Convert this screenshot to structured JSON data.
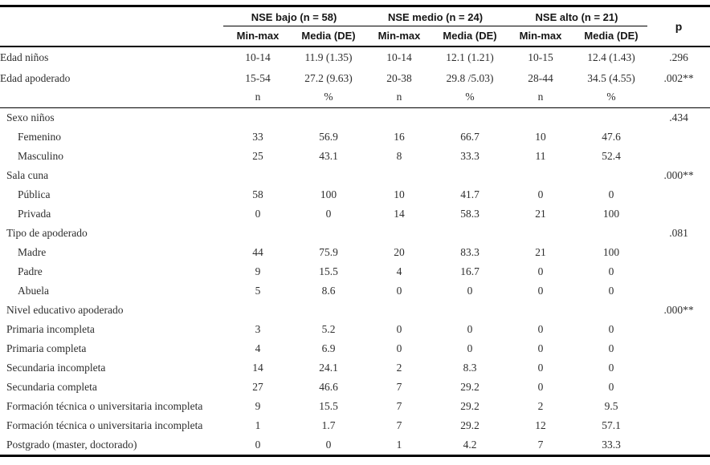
{
  "table": {
    "header": {
      "groups": [
        "NSE bajo (n = 58)",
        "NSE medio (n = 24)",
        "NSE alto (n = 21)"
      ],
      "sub_columns": [
        "Min-max",
        "Media (DE)",
        "Min-max",
        "Media (DE)",
        "Min-max",
        "Media (DE)"
      ],
      "p_label": "p"
    },
    "rows": [
      {
        "type": "stat",
        "label": "Edad niños",
        "indent": false,
        "cells": [
          "10-14",
          "11.9 (1.35)",
          "10-14",
          "12.1 (1.21)",
          "10-15",
          "12.4 (1.43)"
        ],
        "p": ".296"
      },
      {
        "type": "stat",
        "label": "Edad apoderado",
        "indent": false,
        "cells": [
          "15-54",
          "27.2 (9.63)",
          "20-38",
          "29.8 /5.03)",
          "28-44",
          "34.5 (4.55)"
        ],
        "p": ".002**"
      },
      {
        "type": "subheader",
        "label": "",
        "indent": false,
        "cells": [
          "n",
          "%",
          "n",
          "%",
          "n",
          "%"
        ],
        "p": ""
      },
      {
        "type": "section",
        "label": "Sexo niños",
        "indent": false,
        "cells": [
          "",
          "",
          "",
          "",
          "",
          ""
        ],
        "p": ".434"
      },
      {
        "type": "data",
        "label": "Femenino",
        "indent": true,
        "cells": [
          "33",
          "56.9",
          "16",
          "66.7",
          "10",
          "47.6"
        ],
        "p": ""
      },
      {
        "type": "data",
        "label": "Masculino",
        "indent": true,
        "cells": [
          "25",
          "43.1",
          "8",
          "33.3",
          "11",
          "52.4"
        ],
        "p": ""
      },
      {
        "type": "section",
        "label": "Sala cuna",
        "indent": false,
        "cells": [
          "",
          "",
          "",
          "",
          "",
          ""
        ],
        "p": ".000**"
      },
      {
        "type": "data",
        "label": "Pública",
        "indent": true,
        "cells": [
          "58",
          "100",
          "10",
          "41.7",
          "0",
          "0"
        ],
        "p": ""
      },
      {
        "type": "data",
        "label": "Privada",
        "indent": true,
        "cells": [
          "0",
          "0",
          "14",
          "58.3",
          "21",
          "100"
        ],
        "p": ""
      },
      {
        "type": "section",
        "label": "Tipo de apoderado",
        "indent": false,
        "cells": [
          "",
          "",
          "",
          "",
          "",
          ""
        ],
        "p": ".081"
      },
      {
        "type": "data",
        "label": "Madre",
        "indent": true,
        "cells": [
          "44",
          "75.9",
          "20",
          "83.3",
          "21",
          "100"
        ],
        "p": ""
      },
      {
        "type": "data",
        "label": "Padre",
        "indent": true,
        "cells": [
          "9",
          "15.5",
          "4",
          "16.7",
          "0",
          "0"
        ],
        "p": ""
      },
      {
        "type": "data",
        "label": "Abuela",
        "indent": true,
        "cells": [
          "5",
          "8.6",
          "0",
          "0",
          "0",
          "0"
        ],
        "p": ""
      },
      {
        "type": "section",
        "label": "Nivel educativo apoderado",
        "indent": false,
        "cells": [
          "",
          "",
          "",
          "",
          "",
          ""
        ],
        "p": ".000**"
      },
      {
        "type": "data",
        "label": "Primaria incompleta",
        "indent": false,
        "cells": [
          "3",
          "5.2",
          "0",
          "0",
          "0",
          "0"
        ],
        "p": ""
      },
      {
        "type": "data",
        "label": "Primaria completa",
        "indent": false,
        "cells": [
          "4",
          "6.9",
          "0",
          "0",
          "0",
          "0"
        ],
        "p": ""
      },
      {
        "type": "data",
        "label": "Secundaria incompleta",
        "indent": false,
        "cells": [
          "14",
          "24.1",
          "2",
          "8.3",
          "0",
          "0"
        ],
        "p": ""
      },
      {
        "type": "data",
        "label": "Secundaria completa",
        "indent": false,
        "cells": [
          "27",
          "46.6",
          "7",
          "29.2",
          "0",
          "0"
        ],
        "p": ""
      },
      {
        "type": "data",
        "label": "Formación técnica o universitaria incompleta",
        "indent": false,
        "cells": [
          "9",
          "15.5",
          "7",
          "29.2",
          "2",
          "9.5"
        ],
        "p": ""
      },
      {
        "type": "data",
        "label": "Formación técnica o universitaria incompleta",
        "indent": false,
        "cells": [
          "1",
          "1.7",
          "7",
          "29.2",
          "12",
          "57.1"
        ],
        "p": ""
      },
      {
        "type": "data",
        "label": "Postgrado (master, doctorado)",
        "indent": false,
        "cells": [
          "0",
          "0",
          "1",
          "4.2",
          "7",
          "33.3"
        ],
        "p": ""
      }
    ]
  }
}
